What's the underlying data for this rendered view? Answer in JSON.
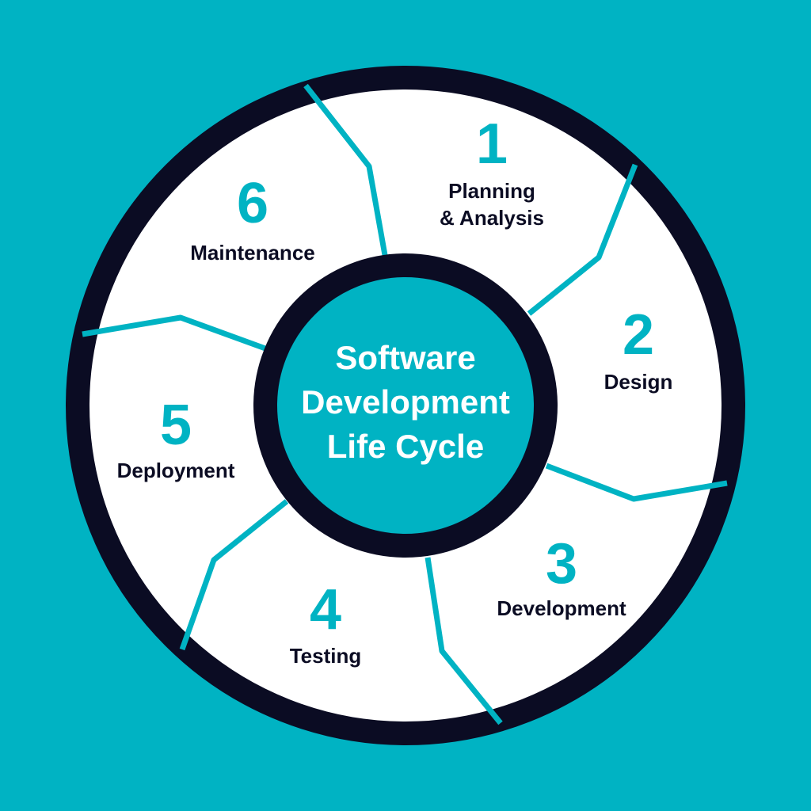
{
  "colors": {
    "background": "#00b3c3",
    "accent": "#00b3c3",
    "ring": "#0b0c23",
    "segment_fill": "#ffffff",
    "label_text": "#0b0c23",
    "center_text": "#ffffff"
  },
  "center": {
    "lines": [
      "Software",
      "Development",
      "Life Cycle"
    ]
  },
  "stages": [
    {
      "number": "1",
      "label_lines": [
        "Planning",
        "& Analysis"
      ]
    },
    {
      "number": "2",
      "label_lines": [
        "Design"
      ]
    },
    {
      "number": "3",
      "label_lines": [
        "Development"
      ]
    },
    {
      "number": "4",
      "label_lines": [
        "Testing"
      ]
    },
    {
      "number": "5",
      "label_lines": [
        "Deployment"
      ]
    },
    {
      "number": "6",
      "label_lines": [
        "Maintenance"
      ]
    }
  ]
}
